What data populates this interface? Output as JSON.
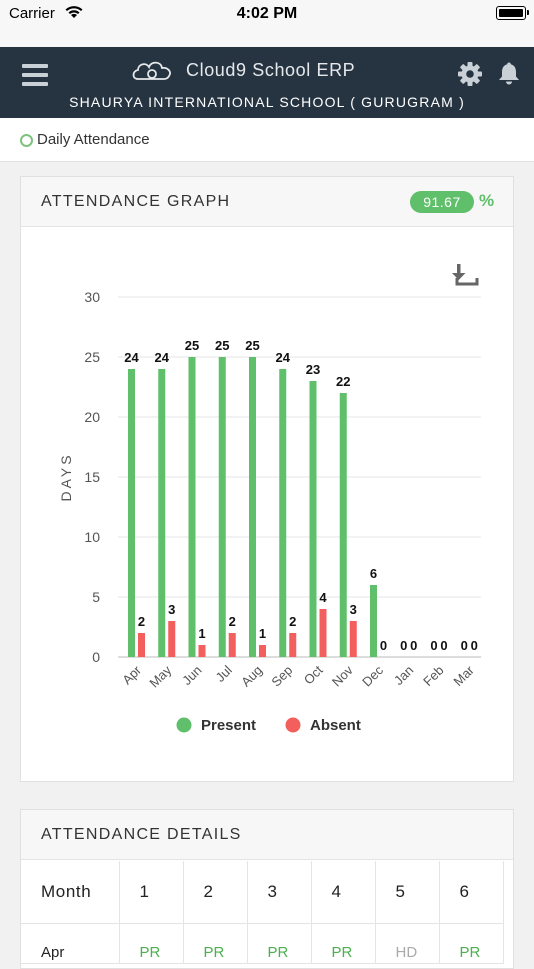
{
  "status_bar": {
    "carrier": "Carrier",
    "time": "4:02 PM"
  },
  "header": {
    "app_name": "Cloud9 School ERP",
    "school": "SHAURYA INTERNATIONAL SCHOOL ( GURUGRAM )"
  },
  "breadcrumb": {
    "label": "Daily Attendance"
  },
  "graph_card": {
    "title": "ATTENDANCE GRAPH",
    "percentage": "91.67",
    "percent_sign": "%"
  },
  "chart_data": {
    "type": "bar",
    "categories": [
      "Apr",
      "May",
      "Jun",
      "Jul",
      "Aug",
      "Sep",
      "Oct",
      "Nov",
      "Dec",
      "Jan",
      "Feb",
      "Mar"
    ],
    "series": [
      {
        "name": "Present",
        "color": "#5fbf6a",
        "values": [
          24,
          24,
          25,
          25,
          25,
          24,
          23,
          22,
          6,
          0,
          0,
          0
        ]
      },
      {
        "name": "Absent",
        "color": "#f25f5c",
        "values": [
          2,
          3,
          1,
          2,
          1,
          2,
          4,
          3,
          0,
          0,
          0,
          0
        ]
      }
    ],
    "ylabel": "DAYS",
    "ylim": [
      0,
      30
    ],
    "yticks": [
      0,
      5,
      10,
      15,
      20,
      25,
      30
    ],
    "grid": true,
    "legend": "bottom"
  },
  "details_card": {
    "title": "ATTENDANCE DETAILS",
    "columns": [
      "Month",
      "1",
      "2",
      "3",
      "4",
      "5",
      "6"
    ],
    "rows": [
      {
        "month": "Apr",
        "days": [
          "PR",
          "PR",
          "PR",
          "PR",
          "HD",
          "PR"
        ]
      }
    ]
  }
}
